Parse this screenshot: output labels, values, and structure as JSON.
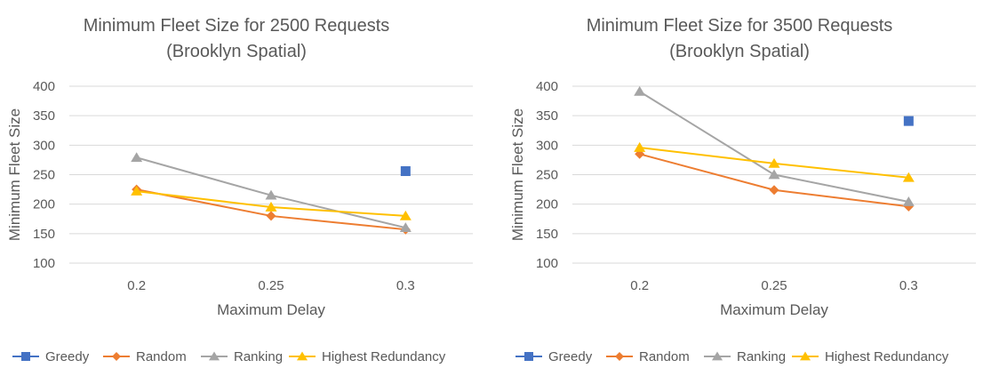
{
  "chart_data": [
    {
      "type": "line",
      "title": [
        "Minimum Fleet Size for 2500 Requests",
        "(Brooklyn Spatial)"
      ],
      "xlabel": "Maximum Delay",
      "ylabel": "Minimum Fleet Size",
      "categories": [
        "0.2",
        "0.25",
        "0.3"
      ],
      "ylim": [
        100,
        400
      ],
      "yticks": [
        100,
        150,
        200,
        250,
        300,
        350,
        400
      ],
      "grid": true,
      "legend": "bottom",
      "series": [
        {
          "name": "Greedy",
          "values": [
            null,
            null,
            256
          ],
          "color": "#4472C4",
          "marker": "square",
          "line": false
        },
        {
          "name": "Random",
          "values": [
            225,
            180,
            157
          ],
          "color": "#ED7D31",
          "marker": "diamond",
          "line": true
        },
        {
          "name": "Ranking",
          "values": [
            279,
            215,
            160
          ],
          "color": "#A5A5A5",
          "marker": "triangle",
          "line": true
        },
        {
          "name": "Highest Redundancy",
          "values": [
            222,
            195,
            180
          ],
          "color": "#FFC000",
          "marker": "triangle",
          "line": true
        }
      ]
    },
    {
      "type": "line",
      "title": [
        "Minimum Fleet Size for 3500 Requests",
        "(Brooklyn Spatial)"
      ],
      "xlabel": "Maximum Delay",
      "ylabel": "Minimum Fleet Size",
      "categories": [
        "0.2",
        "0.25",
        "0.3"
      ],
      "ylim": [
        100,
        400
      ],
      "yticks": [
        100,
        150,
        200,
        250,
        300,
        350,
        400
      ],
      "grid": true,
      "legend": "bottom",
      "series": [
        {
          "name": "Greedy",
          "values": [
            null,
            null,
            341
          ],
          "color": "#4472C4",
          "marker": "square",
          "line": false
        },
        {
          "name": "Random",
          "values": [
            285,
            224,
            196
          ],
          "color": "#ED7D31",
          "marker": "diamond",
          "line": true
        },
        {
          "name": "Ranking",
          "values": [
            391,
            250,
            204
          ],
          "color": "#A5A5A5",
          "marker": "triangle",
          "line": true
        },
        {
          "name": "Highest Redundancy",
          "values": [
            296,
            269,
            245
          ],
          "color": "#FFC000",
          "marker": "triangle",
          "line": true
        }
      ]
    }
  ]
}
